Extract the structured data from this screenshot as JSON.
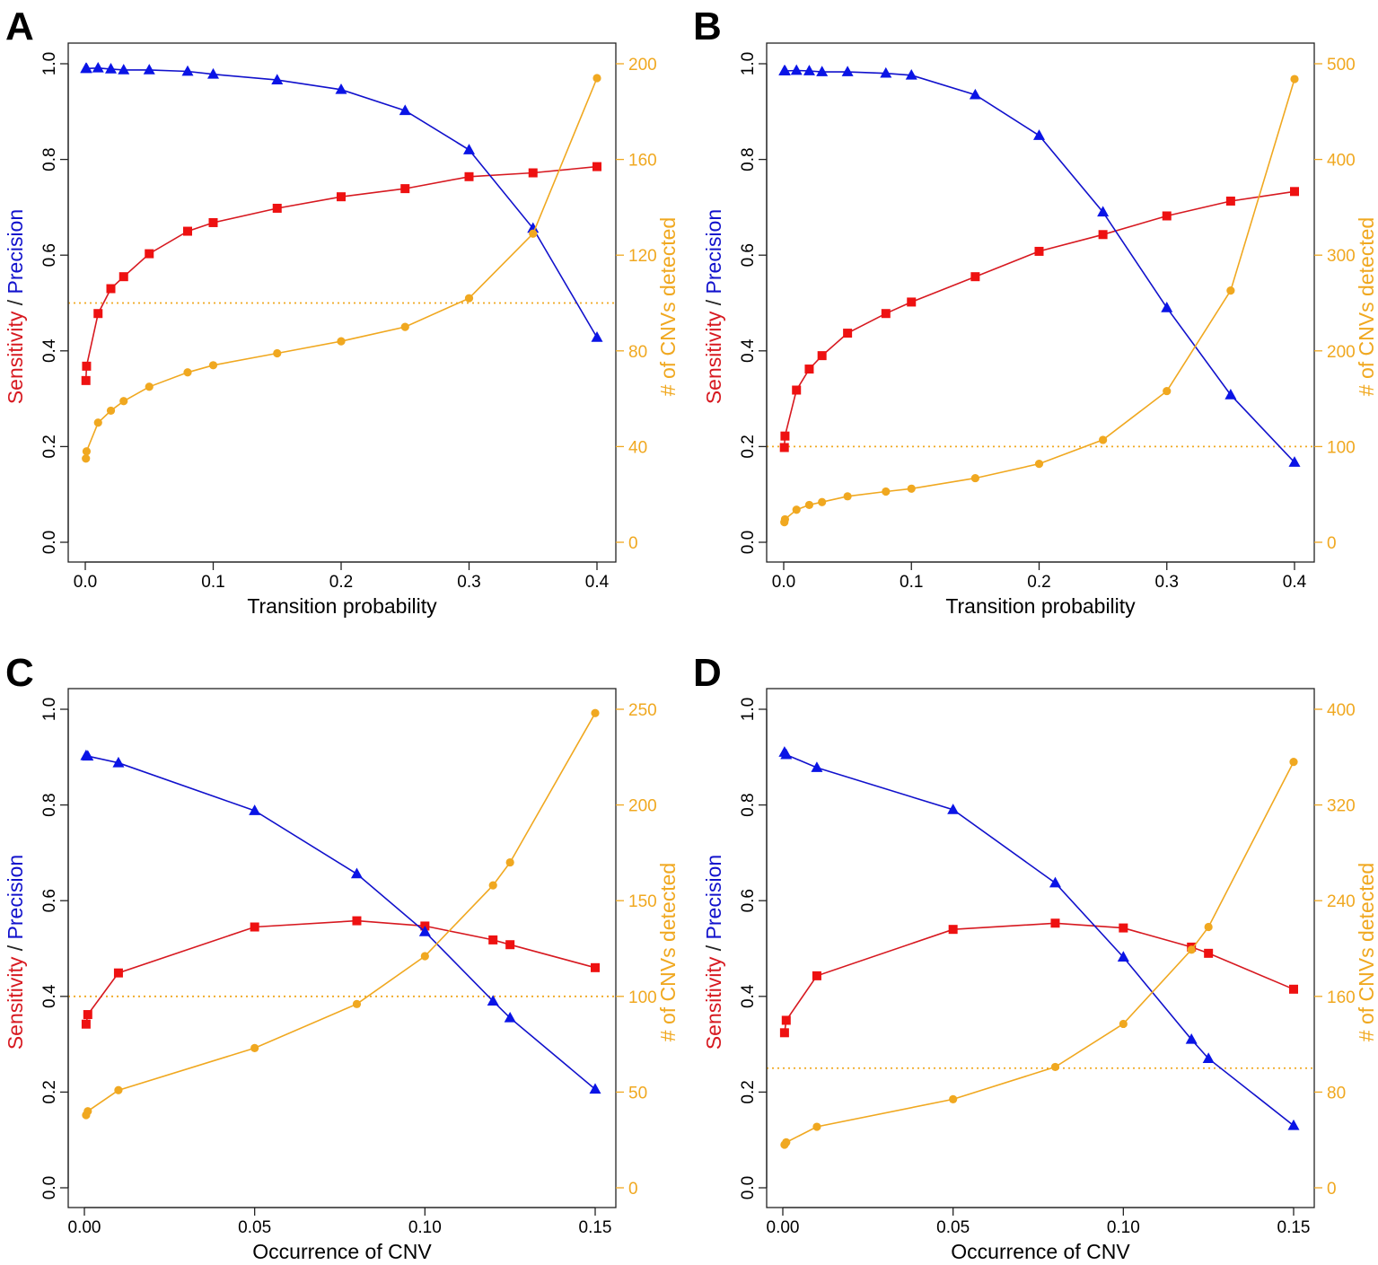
{
  "colors": {
    "sensitivity": "#d71920",
    "sensitivity_marker": "#ee1111",
    "precision": "#1111cc",
    "precision_marker": "#0a14e6",
    "cnv_count": "#f0a820",
    "axis": "#222222",
    "separator": "#222222"
  },
  "chart_data": [
    {
      "panel": "A",
      "type": "line",
      "xlabel": "Transition probability",
      "ylabel_left": {
        "sensitivity": "Sensitivity",
        "separator": "/",
        "precision": "Precision"
      },
      "ylabel_right": "# of CNVs detected",
      "xlim": [
        0,
        0.4
      ],
      "xticks": [
        0,
        0.1,
        0.2,
        0.3,
        0.4
      ],
      "xtick_labels": [
        "0.0",
        "0.1",
        "0.2",
        "0.3",
        "0.4"
      ],
      "ylim_left": [
        0,
        1
      ],
      "yticks_left": [
        "0.0",
        "0.2",
        "0.4",
        "0.6",
        "0.8",
        "1.0"
      ],
      "ylim_right": [
        0,
        200
      ],
      "yticks_right_values": [
        0,
        40,
        80,
        120,
        160,
        200
      ],
      "yticks_right": [
        "0",
        "40",
        "80",
        "120",
        "160",
        "200"
      ],
      "reference_line_right": 100,
      "series": [
        {
          "name": "Sensitivity",
          "axis": "left",
          "marker": "square",
          "x": [
            0.0005,
            0.001,
            0.01,
            0.02,
            0.03,
            0.05,
            0.08,
            0.1,
            0.15,
            0.2,
            0.25,
            0.3,
            0.35,
            0.4
          ],
          "values": [
            0.338,
            0.368,
            0.478,
            0.53,
            0.555,
            0.603,
            0.65,
            0.668,
            0.698,
            0.722,
            0.739,
            0.764,
            0.772,
            0.785
          ]
        },
        {
          "name": "Precision",
          "axis": "left",
          "marker": "triangle",
          "x": [
            0.0005,
            0.001,
            0.01,
            0.02,
            0.03,
            0.05,
            0.08,
            0.1,
            0.15,
            0.2,
            0.25,
            0.3,
            0.35,
            0.4
          ],
          "values": [
            0.99,
            0.99,
            0.991,
            0.989,
            0.987,
            0.987,
            0.984,
            0.978,
            0.966,
            0.946,
            0.902,
            0.82,
            0.656,
            0.428
          ]
        },
        {
          "name": "# of CNVs detected",
          "axis": "right",
          "marker": "circle",
          "x": [
            0.0005,
            0.001,
            0.01,
            0.02,
            0.03,
            0.05,
            0.08,
            0.1,
            0.15,
            0.2,
            0.25,
            0.3,
            0.35,
            0.4
          ],
          "values": [
            35,
            38,
            50,
            55,
            59,
            65,
            71,
            74,
            79,
            84,
            90,
            102,
            129,
            194
          ]
        }
      ]
    },
    {
      "panel": "B",
      "type": "line",
      "xlabel": "Transition probability",
      "ylabel_left": {
        "sensitivity": "Sensitivity",
        "separator": "/",
        "precision": "Precision"
      },
      "ylabel_right": "# of CNVs detected",
      "xlim": [
        0,
        0.4
      ],
      "xticks": [
        0,
        0.1,
        0.2,
        0.3,
        0.4
      ],
      "xtick_labels": [
        "0.0",
        "0.1",
        "0.2",
        "0.3",
        "0.4"
      ],
      "ylim_left": [
        0,
        1
      ],
      "yticks_left": [
        "0.0",
        "0.2",
        "0.4",
        "0.6",
        "0.8",
        "1.0"
      ],
      "ylim_right": [
        0,
        500
      ],
      "yticks_right_values": [
        0,
        100,
        200,
        300,
        400,
        500
      ],
      "yticks_right": [
        "0",
        "100",
        "200",
        "300",
        "400",
        "500"
      ],
      "reference_line_right": 100,
      "series": [
        {
          "name": "Sensitivity",
          "axis": "left",
          "marker": "square",
          "x": [
            0.0005,
            0.001,
            0.01,
            0.02,
            0.03,
            0.05,
            0.08,
            0.1,
            0.15,
            0.2,
            0.25,
            0.3,
            0.35,
            0.4
          ],
          "values": [
            0.198,
            0.222,
            0.318,
            0.362,
            0.39,
            0.437,
            0.478,
            0.502,
            0.555,
            0.608,
            0.643,
            0.682,
            0.713,
            0.733
          ]
        },
        {
          "name": "Precision",
          "axis": "left",
          "marker": "triangle",
          "x": [
            0.0005,
            0.001,
            0.01,
            0.02,
            0.03,
            0.05,
            0.08,
            0.1,
            0.15,
            0.2,
            0.25,
            0.3,
            0.35,
            0.4
          ],
          "values": [
            0.985,
            0.985,
            0.986,
            0.985,
            0.983,
            0.983,
            0.98,
            0.976,
            0.935,
            0.85,
            0.69,
            0.49,
            0.308,
            0.167
          ]
        },
        {
          "name": "# of CNVs detected",
          "axis": "right",
          "marker": "circle",
          "x": [
            0.0005,
            0.001,
            0.01,
            0.02,
            0.03,
            0.05,
            0.08,
            0.1,
            0.15,
            0.2,
            0.25,
            0.3,
            0.35,
            0.4
          ],
          "values": [
            21,
            24,
            34,
            39,
            42,
            48,
            53,
            56,
            67,
            82,
            107,
            158,
            263,
            484
          ]
        }
      ]
    },
    {
      "panel": "C",
      "type": "line",
      "xlabel": "Occurrence of CNV",
      "ylabel_left": {
        "sensitivity": "Sensitivity",
        "separator": "/",
        "precision": "Precision"
      },
      "ylabel_right": "# of CNVs detected",
      "xlim": [
        0,
        0.15
      ],
      "xticks": [
        0,
        0.05,
        0.1,
        0.15
      ],
      "xtick_labels": [
        "0.00",
        "0.05",
        "0.10",
        "0.15"
      ],
      "ylim_left": [
        0,
        1
      ],
      "yticks_left": [
        "0.0",
        "0.2",
        "0.4",
        "0.6",
        "0.8",
        "1.0"
      ],
      "ylim_right": [
        0,
        250
      ],
      "yticks_right_values": [
        0,
        50,
        100,
        150,
        200,
        250
      ],
      "yticks_right": [
        "0",
        "50",
        "100",
        "150",
        "200",
        "250"
      ],
      "reference_line_right": 100,
      "series": [
        {
          "name": "Sensitivity",
          "axis": "left",
          "marker": "square",
          "x": [
            0.0005,
            0.001,
            0.01,
            0.05,
            0.08,
            0.1,
            0.12,
            0.125,
            0.15
          ],
          "values": [
            0.342,
            0.362,
            0.449,
            0.545,
            0.558,
            0.547,
            0.518,
            0.508,
            0.46
          ]
        },
        {
          "name": "Precision",
          "axis": "left",
          "marker": "triangle",
          "x": [
            0.0005,
            0.001,
            0.01,
            0.05,
            0.08,
            0.1,
            0.12,
            0.125,
            0.15
          ],
          "values": [
            0.903,
            0.902,
            0.888,
            0.788,
            0.656,
            0.535,
            0.39,
            0.355,
            0.206
          ]
        },
        {
          "name": "# of CNVs detected",
          "axis": "right",
          "marker": "circle",
          "x": [
            0.0005,
            0.001,
            0.01,
            0.05,
            0.08,
            0.1,
            0.12,
            0.125,
            0.15
          ],
          "values": [
            38,
            40,
            51,
            73,
            96,
            121,
            158,
            170,
            248
          ]
        }
      ]
    },
    {
      "panel": "D",
      "type": "line",
      "xlabel": "Occurrence of CNV",
      "ylabel_left": {
        "sensitivity": "Sensitivity",
        "separator": "/",
        "precision": "Precision"
      },
      "ylabel_right": "# of CNVs detected",
      "xlim": [
        0,
        0.15
      ],
      "xticks": [
        0,
        0.05,
        0.1,
        0.15
      ],
      "xtick_labels": [
        "0.00",
        "0.05",
        "0.10",
        "0.15"
      ],
      "ylim_left": [
        0,
        1
      ],
      "yticks_left": [
        "0.0",
        "0.2",
        "0.4",
        "0.6",
        "0.8",
        "1.0"
      ],
      "ylim_right": [
        0,
        400
      ],
      "yticks_right_values": [
        0,
        80,
        160,
        240,
        320,
        400
      ],
      "yticks_right": [
        "0",
        "80",
        "160",
        "240",
        "320",
        "400"
      ],
      "reference_line_right": 100,
      "series": [
        {
          "name": "Sensitivity",
          "axis": "left",
          "marker": "square",
          "x": [
            0.0005,
            0.001,
            0.01,
            0.05,
            0.08,
            0.1,
            0.12,
            0.125,
            0.15
          ],
          "values": [
            0.324,
            0.35,
            0.443,
            0.54,
            0.553,
            0.543,
            0.503,
            0.49,
            0.415
          ]
        },
        {
          "name": "Precision",
          "axis": "left",
          "marker": "triangle",
          "x": [
            0.0005,
            0.001,
            0.01,
            0.05,
            0.08,
            0.1,
            0.12,
            0.125,
            0.15
          ],
          "values": [
            0.91,
            0.905,
            0.878,
            0.79,
            0.637,
            0.482,
            0.31,
            0.27,
            0.13
          ]
        },
        {
          "name": "# of CNVs detected",
          "axis": "right",
          "marker": "circle",
          "x": [
            0.0005,
            0.001,
            0.01,
            0.05,
            0.08,
            0.1,
            0.12,
            0.125,
            0.15
          ],
          "values": [
            36,
            38,
            51,
            74,
            101,
            137,
            199,
            218,
            356
          ]
        }
      ]
    }
  ]
}
